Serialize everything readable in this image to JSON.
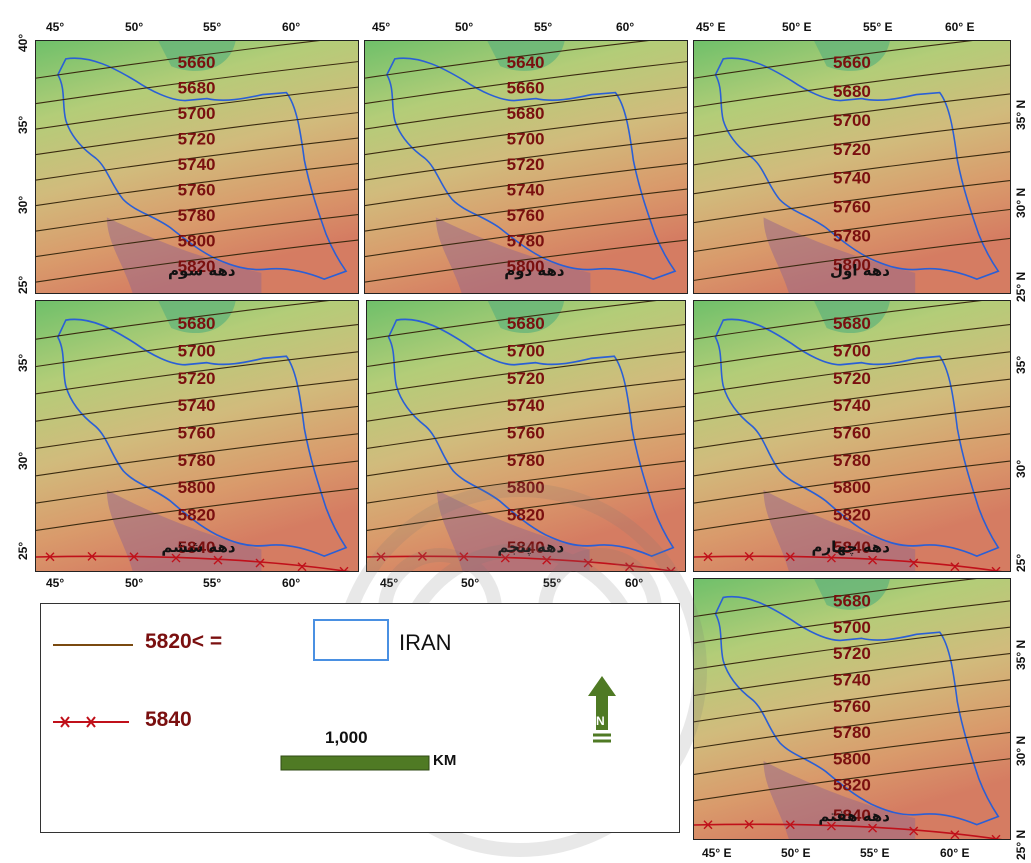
{
  "panels": [
    {
      "id": "p3",
      "decade_label": "دهه سوم",
      "contours": [
        "5660",
        "5680",
        "5700",
        "5720",
        "5740",
        "5760",
        "5780",
        "5800",
        "5820"
      ],
      "line_5840": false
    },
    {
      "id": "p2",
      "decade_label": "دهه دوم",
      "contours": [
        "5640",
        "5660",
        "5680",
        "5700",
        "5720",
        "5740",
        "5760",
        "5780",
        "5800"
      ],
      "line_5840": false
    },
    {
      "id": "p1",
      "decade_label": "دهه اول",
      "contours": [
        "5660",
        "5680",
        "5700",
        "5720",
        "5740",
        "5760",
        "5780",
        "5800"
      ],
      "line_5840": false
    },
    {
      "id": "p6",
      "decade_label": "دهه ششم",
      "contours": [
        "5680",
        "5700",
        "5720",
        "5740",
        "5760",
        "5780",
        "5800",
        "5820",
        "5840"
      ],
      "line_5840": true
    },
    {
      "id": "p5",
      "decade_label": "دهه پنجم",
      "contours": [
        "5680",
        "5700",
        "5720",
        "5740",
        "5760",
        "5780",
        "5800",
        "5820",
        "5840"
      ],
      "line_5840": true
    },
    {
      "id": "p4",
      "decade_label": "دهه چهارم",
      "contours": [
        "5680",
        "5700",
        "5720",
        "5740",
        "5760",
        "5780",
        "5800",
        "5820",
        "5840"
      ],
      "line_5840": true
    },
    {
      "id": "p7",
      "decade_label": "دهه هفتم",
      "contours": [
        "5680",
        "5700",
        "5720",
        "5740",
        "5760",
        "5780",
        "5800",
        "5820",
        "5840"
      ],
      "line_5840": true
    }
  ],
  "axes": {
    "top_left": [
      "45°",
      "50°",
      "55°",
      "60°"
    ],
    "top_mid": [
      "45°",
      "50°",
      "55°",
      "60°"
    ],
    "top_right": [
      "45° E",
      "50° E",
      "55° E",
      "60° E"
    ],
    "bottom_left": [
      "45°",
      "50°",
      "55°",
      "60°"
    ],
    "bottom_mid": [
      "45°",
      "50°",
      "55°",
      "60°"
    ],
    "bottom_right": [
      "45° E",
      "50° E",
      "55° E",
      "60° E"
    ],
    "lat_left": [
      "40°",
      "35°",
      "30°",
      "25°"
    ],
    "lat_left_mid": [
      "35°",
      "30°",
      "25°"
    ],
    "lat_right": [
      "35° N",
      "30° N",
      "25° N"
    ],
    "lat_right_mid": [
      "35°",
      "30°",
      "25°"
    ],
    "lat_right_bottom": [
      "35° N",
      "30° N",
      "25° N"
    ]
  },
  "legend": {
    "line_label": "5820< =",
    "cross_label": "5840",
    "iran_label": "IRAN",
    "scale_value": "1,000",
    "scale_unit": "KM",
    "north_label": "N"
  },
  "colors": {
    "contour_line": "#3a2a10",
    "contour_text": "#7a0f0f",
    "border_line": "#2a5fd6",
    "line_5840": "#c0101a",
    "legend_line": "#7a4a10",
    "scale_bar": "#4f7a24",
    "north_arrow": "#4f7a24"
  }
}
